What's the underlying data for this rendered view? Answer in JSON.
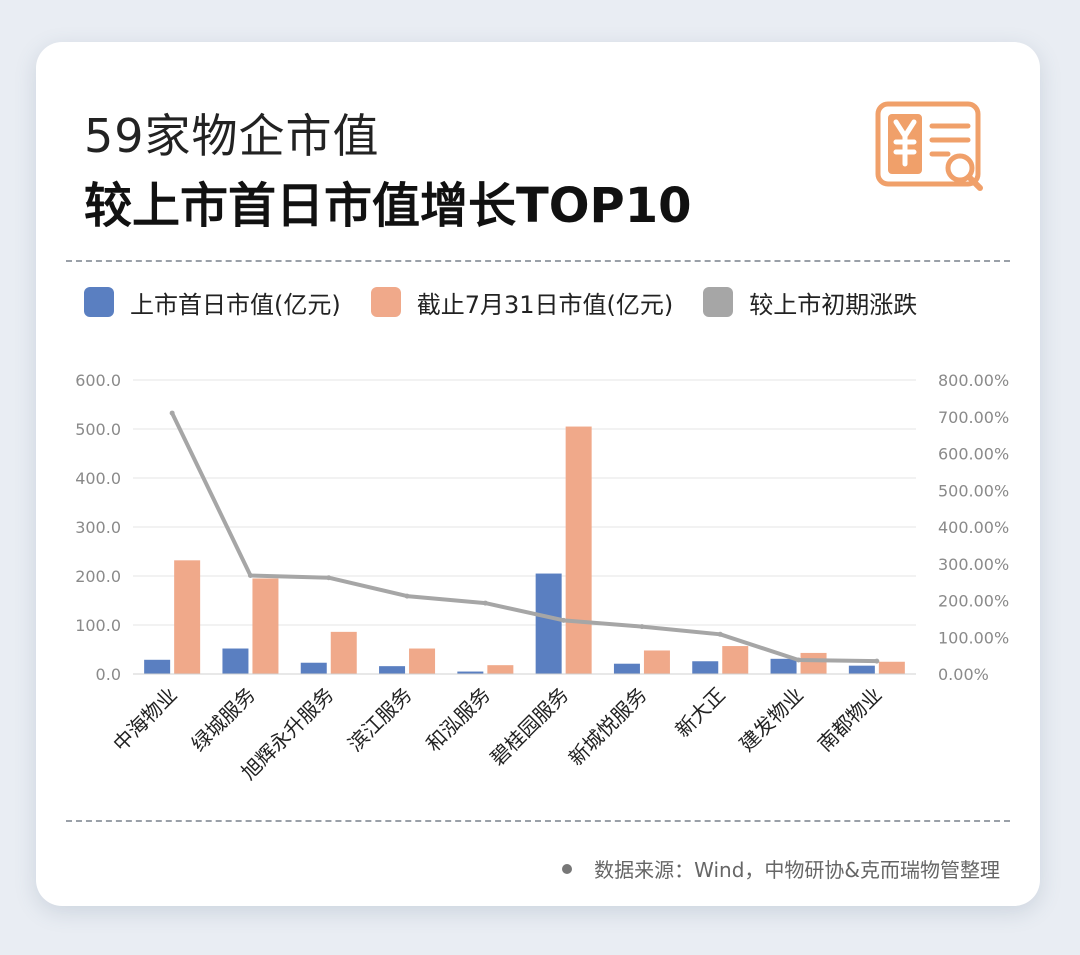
{
  "header": {
    "title_line1": "59家物企市值",
    "title_line2": "较上市首日市值增长TOP10"
  },
  "icons": {
    "logo": "receipt-yen-magnifier-icon"
  },
  "colors": {
    "series1": "#5a7fc1",
    "series2": "#f0a98a",
    "line": "#a6a6a6",
    "accent": "#f0a06a"
  },
  "legend": {
    "items": [
      {
        "label": "上市首日市值(亿元)",
        "color": "#5a7fc1"
      },
      {
        "label": "截止7月31日市值(亿元)",
        "color": "#f0a98a"
      },
      {
        "label": "较上市初期涨跌",
        "color": "#a6a6a6"
      }
    ]
  },
  "chart_data": {
    "type": "bar",
    "categories": [
      "中海物业",
      "绿城服务",
      "旭辉永升服务",
      "滨江服务",
      "和泓服务",
      "碧桂园服务",
      "新城悦服务",
      "新大正",
      "建发物业",
      "南都物业"
    ],
    "series": [
      {
        "name": "上市首日市值(亿元)",
        "type": "bar",
        "axis": "left",
        "values": [
          29,
          52,
          23,
          16,
          5,
          205,
          21,
          26,
          31,
          17
        ]
      },
      {
        "name": "截止7月31日市值(亿元)",
        "type": "bar",
        "axis": "left",
        "values": [
          232,
          195,
          86,
          52,
          18,
          505,
          48,
          57,
          43,
          25
        ]
      },
      {
        "name": "较上市初期涨跌",
        "type": "line",
        "axis": "right",
        "values": [
          710,
          268,
          262,
          212,
          193,
          146,
          129,
          108,
          38,
          35
        ]
      }
    ],
    "yticks_left": [
      "0.0",
      "100.0",
      "200.0",
      "300.0",
      "400.0",
      "500.0",
      "600.0"
    ],
    "yticks_right": [
      "0.00%",
      "100.00%",
      "200.00%",
      "300.00%",
      "400.00%",
      "500.00%",
      "600.00%",
      "700.00%",
      "800.00%"
    ],
    "ylim_left": [
      0,
      600
    ],
    "ylim_right": [
      0,
      800
    ],
    "grid": true,
    "legend_position": "top"
  },
  "footer": {
    "source": "数据来源：Wind，中物研协&克而瑞物管整理"
  }
}
